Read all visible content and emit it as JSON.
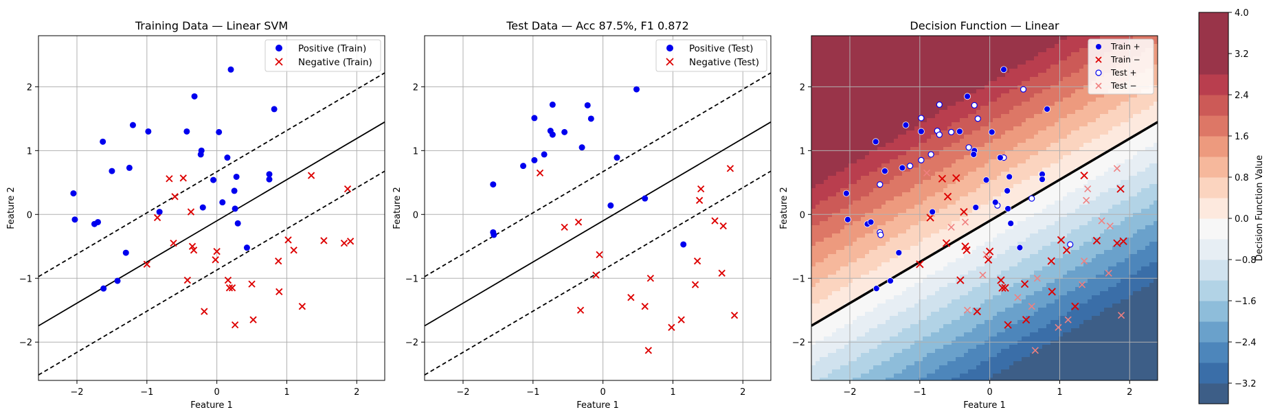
{
  "colors": {
    "positive": "#0000ee",
    "negative": "#dd0000",
    "grid": "#b0b0b0",
    "test_negative": "#f08080"
  },
  "chart_data": [
    {
      "type": "scatter",
      "title": "Training Data — Linear SVM",
      "xlabel": "Feature 1",
      "ylabel": "Feature 2",
      "xlim": [
        -2.55,
        2.4
      ],
      "ylim": [
        -2.6,
        2.8
      ],
      "xticks": [
        -2,
        -1,
        0,
        1,
        2
      ],
      "yticks": [
        -2,
        -1,
        0,
        1,
        2
      ],
      "grid": true,
      "legend_position": "top-right",
      "decision_boundary": {
        "slope": 0.645,
        "intercept": -0.1,
        "margin": 0.77
      },
      "series": [
        {
          "name": "Positive (Train)",
          "marker": "circle",
          "color": "#0000ee",
          "points": [
            [
              -2.05,
              0.33
            ],
            [
              -2.03,
              -0.08
            ],
            [
              -1.63,
              1.14
            ],
            [
              -1.75,
              -0.15
            ],
            [
              -1.7,
              -0.12
            ],
            [
              -1.5,
              0.68
            ],
            [
              -1.62,
              -1.16
            ],
            [
              -1.42,
              -1.04
            ],
            [
              -1.2,
              1.4
            ],
            [
              -1.25,
              0.73
            ],
            [
              -1.3,
              -0.6
            ],
            [
              -0.98,
              1.3
            ],
            [
              -0.82,
              0.04
            ],
            [
              -0.43,
              1.3
            ],
            [
              -0.32,
              1.85
            ],
            [
              -0.22,
              1.0
            ],
            [
              -0.23,
              0.94
            ],
            [
              -0.2,
              0.11
            ],
            [
              -0.05,
              0.54
            ],
            [
              0.03,
              1.29
            ],
            [
              0.08,
              0.19
            ],
            [
              0.15,
              0.89
            ],
            [
              0.2,
              2.27
            ],
            [
              0.25,
              0.37
            ],
            [
              0.28,
              0.59
            ],
            [
              0.26,
              0.09
            ],
            [
              0.3,
              -0.14
            ],
            [
              0.43,
              -0.52
            ],
            [
              0.75,
              0.63
            ],
            [
              0.75,
              0.55
            ],
            [
              0.82,
              1.65
            ]
          ]
        },
        {
          "name": "Negative (Train)",
          "marker": "x",
          "color": "#dd0000",
          "points": [
            [
              -1.0,
              -0.78
            ],
            [
              -0.85,
              -0.05
            ],
            [
              -0.68,
              0.56
            ],
            [
              -0.62,
              -0.45
            ],
            [
              -0.6,
              0.28
            ],
            [
              -0.48,
              0.57
            ],
            [
              -0.42,
              -1.03
            ],
            [
              -0.37,
              0.04
            ],
            [
              -0.35,
              -0.5
            ],
            [
              -0.33,
              -0.56
            ],
            [
              -0.18,
              -1.52
            ],
            [
              -0.02,
              -0.71
            ],
            [
              0.0,
              -0.58
            ],
            [
              0.16,
              -1.03
            ],
            [
              0.18,
              -1.15
            ],
            [
              0.22,
              -1.15
            ],
            [
              0.26,
              -1.73
            ],
            [
              0.5,
              -1.09
            ],
            [
              0.52,
              -1.65
            ],
            [
              0.88,
              -0.73
            ],
            [
              0.89,
              -1.21
            ],
            [
              1.02,
              -0.4
            ],
            [
              1.1,
              -0.56
            ],
            [
              1.22,
              -1.44
            ],
            [
              1.35,
              0.61
            ],
            [
              1.53,
              -0.41
            ],
            [
              1.82,
              -0.45
            ],
            [
              1.87,
              0.4
            ],
            [
              1.91,
              -0.42
            ]
          ]
        }
      ]
    },
    {
      "type": "scatter",
      "title": "Test Data — Acc 87.5%, F1 0.872",
      "xlabel": "Feature 1",
      "ylabel": "Feature 2",
      "xlim": [
        -2.55,
        2.4
      ],
      "ylim": [
        -2.6,
        2.8
      ],
      "xticks": [
        -2,
        -1,
        0,
        1,
        2
      ],
      "yticks": [
        -2,
        -1,
        0,
        1,
        2
      ],
      "grid": true,
      "legend_position": "top-right",
      "decision_boundary": {
        "slope": 0.645,
        "intercept": -0.1,
        "margin": 0.77
      },
      "series": [
        {
          "name": "Positive (Test)",
          "marker": "circle",
          "color": "#0000ee",
          "points": [
            [
              -1.57,
              0.47
            ],
            [
              -1.57,
              -0.28
            ],
            [
              -1.56,
              -0.32
            ],
            [
              -1.14,
              0.76
            ],
            [
              -0.98,
              1.51
            ],
            [
              -0.98,
              0.85
            ],
            [
              -0.84,
              0.94
            ],
            [
              -0.75,
              1.31
            ],
            [
              -0.72,
              1.72
            ],
            [
              -0.72,
              1.25
            ],
            [
              -0.55,
              1.29
            ],
            [
              -0.3,
              1.05
            ],
            [
              -0.22,
              1.71
            ],
            [
              -0.17,
              1.5
            ],
            [
              0.2,
              0.89
            ],
            [
              0.11,
              0.14
            ],
            [
              0.48,
              1.96
            ],
            [
              0.6,
              0.25
            ],
            [
              1.15,
              -0.47
            ]
          ]
        },
        {
          "name": "Negative (Test)",
          "marker": "x",
          "color": "#dd0000",
          "points": [
            [
              -0.9,
              0.65
            ],
            [
              -0.55,
              -0.2
            ],
            [
              -0.35,
              -0.12
            ],
            [
              -0.32,
              -1.5
            ],
            [
              -0.1,
              -0.95
            ],
            [
              -0.05,
              -0.63
            ],
            [
              0.4,
              -1.3
            ],
            [
              0.6,
              -1.44
            ],
            [
              0.65,
              -2.13
            ],
            [
              0.68,
              -1.0
            ],
            [
              0.98,
              -1.77
            ],
            [
              1.12,
              -1.65
            ],
            [
              1.32,
              -1.1
            ],
            [
              1.35,
              -0.73
            ],
            [
              1.38,
              0.22
            ],
            [
              1.4,
              0.4
            ],
            [
              1.6,
              -0.1
            ],
            [
              1.7,
              -0.92
            ],
            [
              1.72,
              -0.18
            ],
            [
              1.82,
              0.72
            ],
            [
              1.88,
              -1.58
            ]
          ]
        }
      ]
    },
    {
      "type": "heatmap",
      "title": "Decision Function — Linear",
      "xlabel": "Feature 1",
      "ylabel": "Feature 2",
      "xlim": [
        -2.55,
        2.4
      ],
      "ylim": [
        -2.6,
        2.8
      ],
      "xticks": [
        -2,
        -1,
        0,
        1,
        2
      ],
      "yticks": [
        -2,
        -1,
        0,
        1,
        2
      ],
      "grid": true,
      "legend_position": "top-right",
      "decision_function": {
        "w1": -0.838,
        "w2": 1.3,
        "b": 0.13
      },
      "colorbar": {
        "label": "Decision Function Value",
        "levels": [
          -3.6,
          -3.2,
          -2.8,
          -2.4,
          -2.0,
          -1.6,
          -1.2,
          -0.8,
          -0.4,
          0.0,
          0.4,
          0.8,
          1.2,
          1.6,
          2.0,
          2.4,
          2.8,
          3.2,
          3.6,
          4.0
        ],
        "tick_labels": [
          "-3.2",
          "-2.4",
          "-1.6",
          "-0.8",
          "0.0",
          "0.8",
          "1.6",
          "2.4",
          "3.2",
          "4.0"
        ],
        "tick_values": [
          -3.2,
          -2.4,
          -1.6,
          -0.8,
          0.0,
          0.8,
          1.6,
          2.4,
          3.2,
          4.0
        ]
      },
      "legend": [
        {
          "name": "Train +",
          "marker": "filled-circle",
          "color": "#0000ee"
        },
        {
          "name": "Train −",
          "marker": "x",
          "color": "#dd0000"
        },
        {
          "name": "Test +",
          "marker": "hollow-circle",
          "color": "#0000ee"
        },
        {
          "name": "Test −",
          "marker": "x-light",
          "color": "#f08080"
        }
      ]
    }
  ]
}
